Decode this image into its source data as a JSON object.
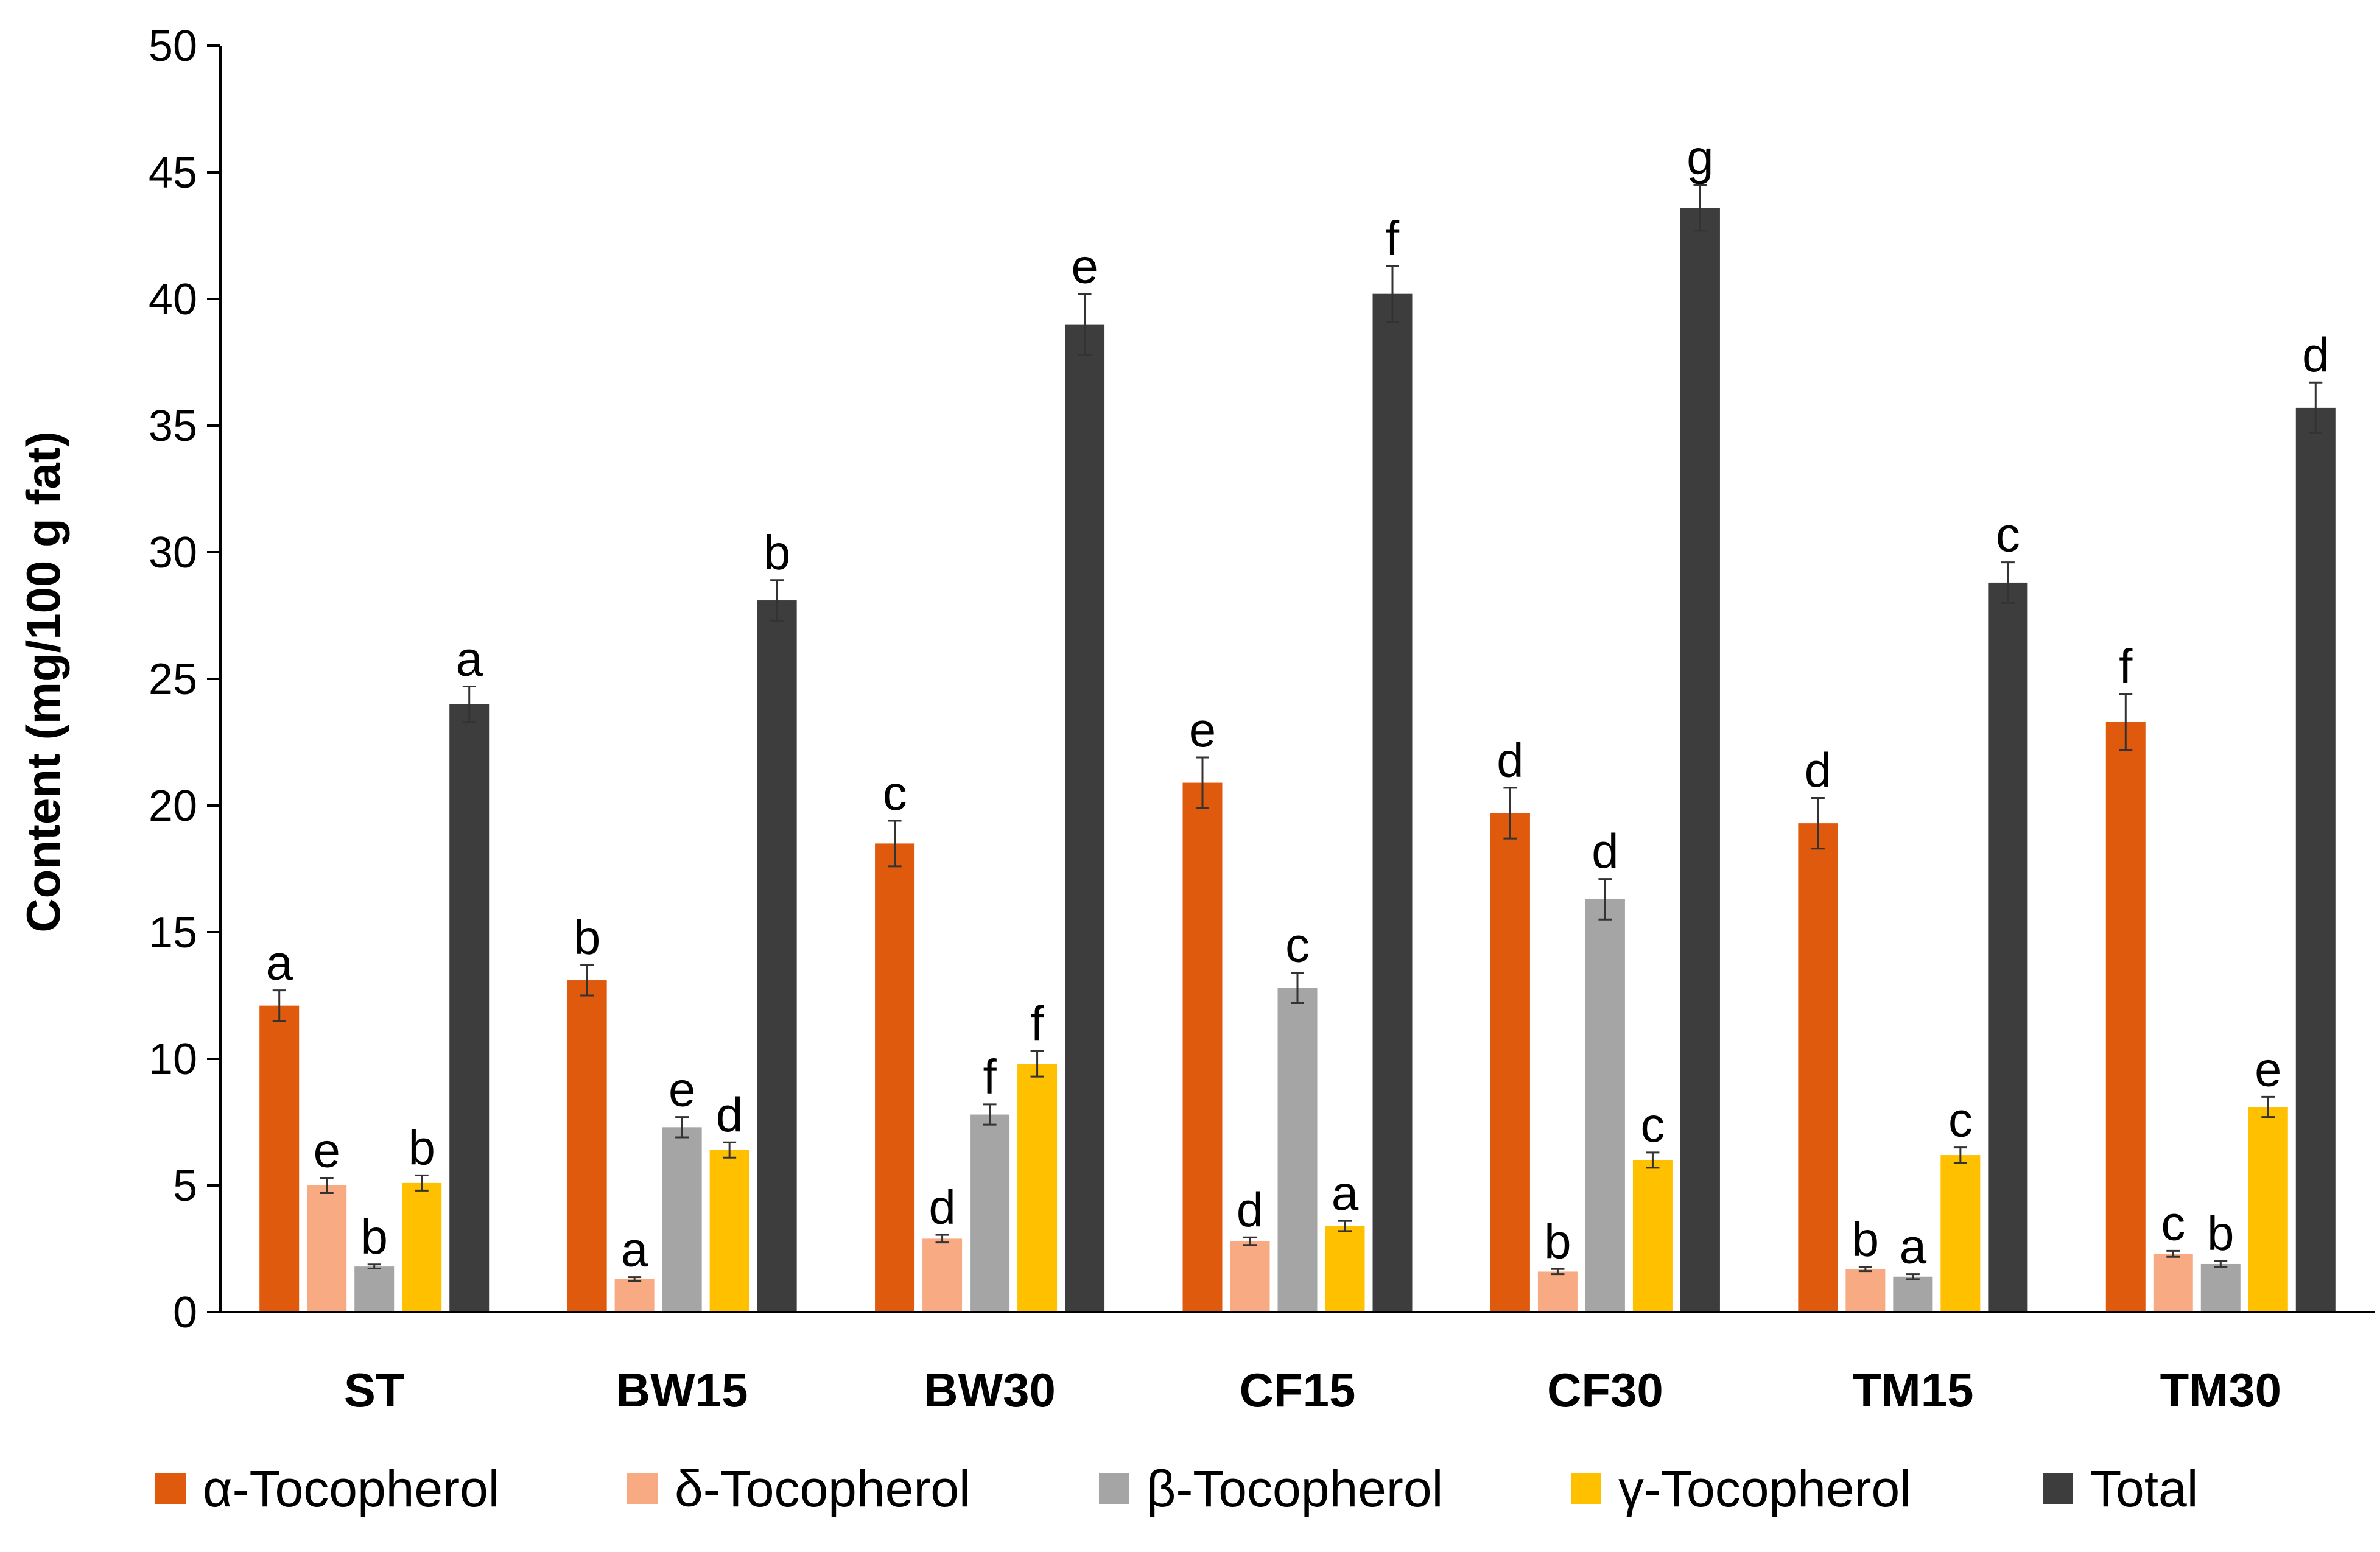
{
  "chart_data": {
    "type": "bar",
    "title": "",
    "xlabel": "",
    "ylabel": "Content (mg/100 g fat)",
    "ylim": [
      0,
      50
    ],
    "yticks": [
      "0",
      "5",
      "10",
      "15",
      "20",
      "25",
      "30",
      "35",
      "40",
      "45",
      "50"
    ],
    "grid": false,
    "legend_position": "bottom",
    "categories": [
      "ST",
      "BW15",
      "BW30",
      "CF15",
      "CF30",
      "TM15",
      "TM30"
    ],
    "series": [
      {
        "name": "α-Tocopherol",
        "color": "#E05A0E",
        "values": [
          12.1,
          13.1,
          18.5,
          20.9,
          19.7,
          19.3,
          23.3
        ],
        "errors": [
          0.6,
          0.6,
          0.9,
          1.0,
          1.0,
          1.0,
          1.1
        ],
        "letters": [
          "a",
          "b",
          "c",
          "e",
          "d",
          "d",
          "f"
        ]
      },
      {
        "name": "δ-Tocopherol",
        "color": "#F8AB83",
        "values": [
          5.0,
          1.3,
          2.9,
          2.8,
          1.6,
          1.7,
          2.3
        ],
        "errors": [
          0.3,
          0.08,
          0.15,
          0.15,
          0.1,
          0.08,
          0.12
        ],
        "letters": [
          "e",
          "a",
          "d",
          "d",
          "b",
          "b",
          "c"
        ]
      },
      {
        "name": "β-Tocopherol",
        "color": "#A5A5A5",
        "values": [
          1.8,
          7.3,
          7.8,
          12.8,
          16.3,
          1.4,
          1.9
        ],
        "errors": [
          0.08,
          0.4,
          0.4,
          0.6,
          0.8,
          0.1,
          0.12
        ],
        "letters": [
          "b",
          "e",
          "f",
          "c",
          "d",
          "a",
          "b"
        ]
      },
      {
        "name": "γ-Tocopherol",
        "color": "#FFC000",
        "values": [
          5.1,
          6.4,
          9.8,
          3.4,
          6.0,
          6.2,
          8.1
        ],
        "errors": [
          0.3,
          0.3,
          0.5,
          0.2,
          0.3,
          0.3,
          0.4
        ],
        "letters": [
          "b",
          "d",
          "f",
          "a",
          "c",
          "c",
          "e"
        ]
      },
      {
        "name": "Total",
        "color": "#3D3D3D",
        "values": [
          24.0,
          28.1,
          39.0,
          40.2,
          43.6,
          28.8,
          35.7
        ],
        "errors": [
          0.7,
          0.8,
          1.2,
          1.1,
          0.9,
          0.8,
          1.0
        ],
        "letters": [
          "a",
          "b",
          "e",
          "f",
          "g",
          "c",
          "d"
        ]
      }
    ]
  }
}
